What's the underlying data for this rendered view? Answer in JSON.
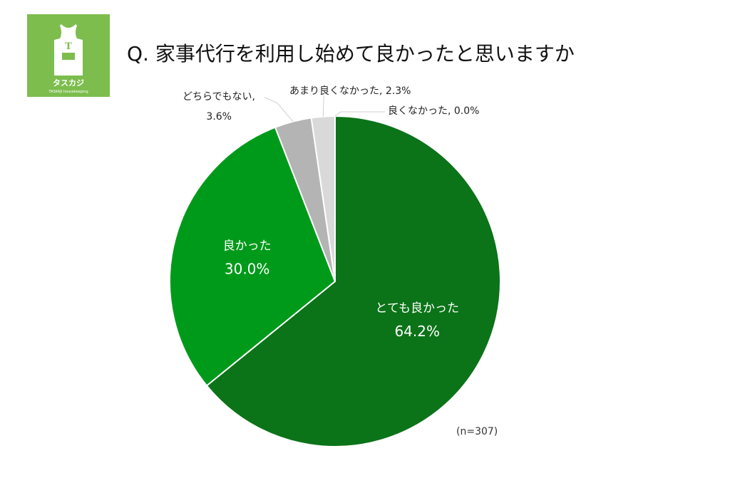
{
  "logo": {
    "letter": "T",
    "brand": "タスカジ",
    "tagline": "TASKAJI housekeeping",
    "bg_color": "#7cbd4d",
    "icon": "apron-icon"
  },
  "title": "Q. 家事代行を利用し始めて良かったと思いますか",
  "note": "(n=307)",
  "chart_data": {
    "type": "pie",
    "title": "Q. 家事代行を利用し始めて良かったと思いますか",
    "slices": [
      {
        "label": "とても良かった",
        "value": 64.2,
        "value_label": "64.2%",
        "color": "#0b7318"
      },
      {
        "label": "良かった",
        "value": 30.0,
        "value_label": "30.0%",
        "color": "#009a1a"
      },
      {
        "label": "どちらでもない,",
        "value": 3.6,
        "value_label": "3.6%",
        "color": "#b4b4b4"
      },
      {
        "label": "あまり良くなかった, 2.3%",
        "value": 2.3,
        "value_label": "",
        "color": "#d9d9d9"
      },
      {
        "label": "良くなかった, 0.0%",
        "value": 0.0,
        "value_label": "",
        "color": "#eeeeee"
      }
    ],
    "start_angle": "12 o'clock",
    "direction": "clockwise",
    "legend": "none"
  }
}
